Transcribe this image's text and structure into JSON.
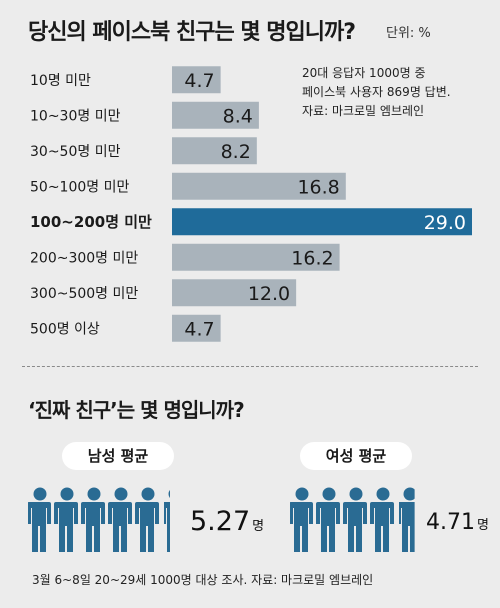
{
  "title": "당신의 페이스북 친구는 몇 명입니까?",
  "unit": "단위: %",
  "note": [
    "20대 응답자 1000명 중",
    "페이스북 사용자 869명 답변.",
    "자료: 마크로밀 엠브레인"
  ],
  "chart_data": {
    "type": "bar",
    "orientation": "horizontal",
    "categories": [
      "10명 미만",
      "10~30명 미만",
      "30~50명 미만",
      "50~100명 미만",
      "100~200명 미만",
      "200~300명 미만",
      "300~500명 미만",
      "500명 이상"
    ],
    "values": [
      4.7,
      8.4,
      8.2,
      16.8,
      29.0,
      16.2,
      12.0,
      4.7
    ],
    "value_labels": [
      "4.7",
      "8.4",
      "8.2",
      "16.8",
      "29.0",
      "16.2",
      "12.0",
      "4.7"
    ],
    "highlight_index": 4,
    "xlim": [
      0,
      29.0
    ],
    "grid": false,
    "colors": {
      "bar": "#a9b3bb",
      "highlight": "#1f6b9a",
      "label": "#1a1a1a",
      "highlight_label": "#ffffff"
    }
  },
  "section2": {
    "title": "‘진짜 친구’는 몇 명입니까?",
    "male": {
      "label": "남성 평균",
      "value": "5.27",
      "unit": "명"
    },
    "female": {
      "label": "여성 평균",
      "value": "4.71",
      "unit": "명"
    },
    "icon_color": "#2a6b93"
  },
  "footer": "3월 6~8일 20~29세 1000명 대상 조사. 자료: 마크로밀 엠브레인"
}
